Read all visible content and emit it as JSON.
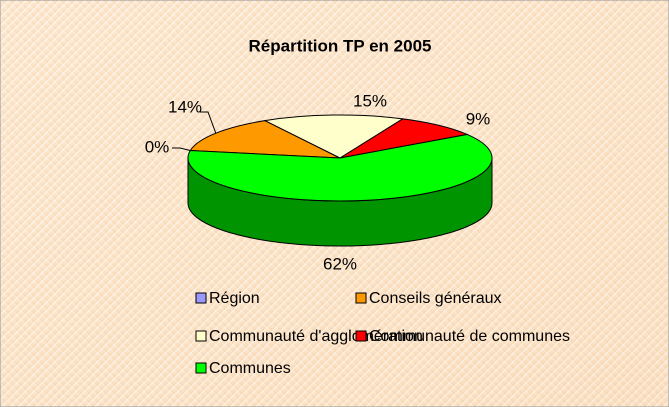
{
  "chart_data": {
    "type": "pie",
    "title": "Répartition TP en 2005",
    "categories": [
      "Région",
      "Conseils généraux",
      "Communauté d'agglomération",
      "Communauté de communes",
      "Communes"
    ],
    "values": [
      0,
      14,
      15,
      9,
      62
    ],
    "value_labels": [
      "0%",
      "14%",
      "15%",
      "9%",
      "62%"
    ],
    "colors": [
      "#9999ff",
      "#ff9900",
      "#ffffcc",
      "#ff0000",
      "#00ff00"
    ],
    "legend": "bottom"
  }
}
